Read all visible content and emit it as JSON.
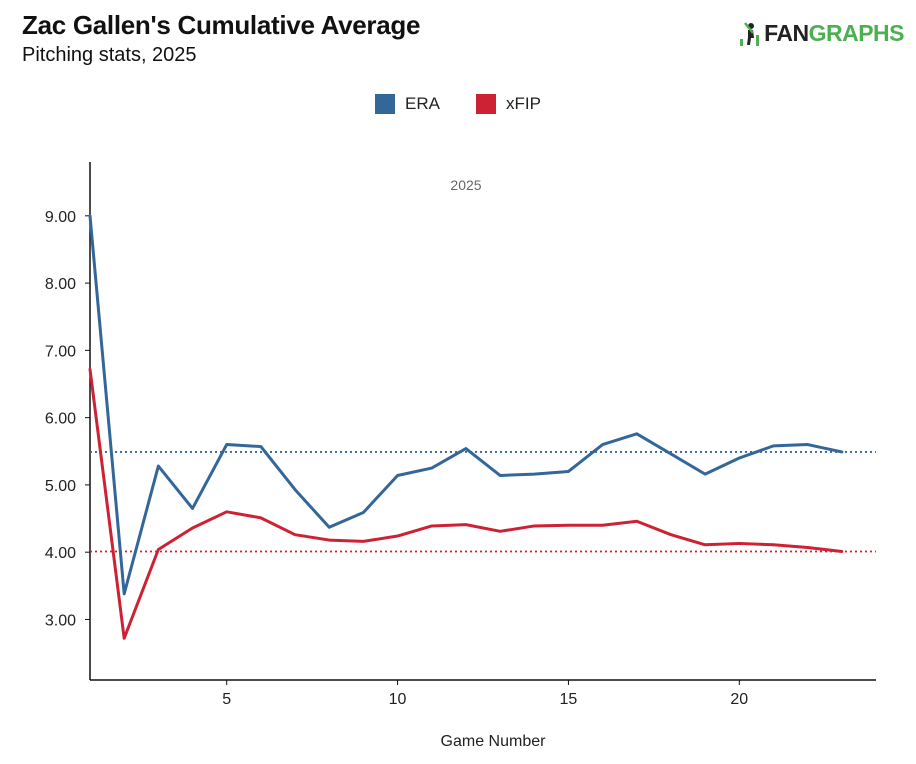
{
  "header": {
    "title": "Zac Gallen's Cumulative Average",
    "subtitle": "Pitching stats, 2025"
  },
  "logo": {
    "text_fan": "FAN",
    "text_graphs": "GRAPHS",
    "icon": "batter-icon"
  },
  "chart_data": {
    "type": "line",
    "title": "Zac Gallen's Cumulative Average",
    "subtitle": "Pitching stats, 2025",
    "panel_label": "2025",
    "xlabel": "Game Number",
    "ylabel": "",
    "xlim": [
      1,
      24
    ],
    "ylim": [
      2.1,
      9.8
    ],
    "x_ticks": [
      5,
      10,
      15,
      20
    ],
    "y_ticks": [
      3,
      4,
      5,
      6,
      7,
      8,
      9
    ],
    "y_tick_labels": [
      "3.00",
      "4.00",
      "5.00",
      "6.00",
      "7.00",
      "8.00",
      "9.00"
    ],
    "legend_position": "top-center",
    "grid": false,
    "x": [
      1,
      2,
      3,
      4,
      5,
      6,
      7,
      8,
      9,
      10,
      11,
      12,
      13,
      14,
      15,
      16,
      17,
      18,
      19,
      20,
      21,
      22,
      23
    ],
    "series": [
      {
        "name": "ERA",
        "color": "#336699",
        "values": [
          9.0,
          3.38,
          5.28,
          4.65,
          5.6,
          5.57,
          4.93,
          4.37,
          4.59,
          5.14,
          5.25,
          5.54,
          5.14,
          5.16,
          5.2,
          5.6,
          5.76,
          5.46,
          5.16,
          5.4,
          5.58,
          5.6,
          5.49
        ],
        "season_average": 5.49
      },
      {
        "name": "xFIP",
        "color": "#cc2233",
        "values": [
          6.72,
          2.72,
          4.04,
          4.36,
          4.6,
          4.51,
          4.26,
          4.18,
          4.16,
          4.24,
          4.39,
          4.41,
          4.31,
          4.39,
          4.4,
          4.4,
          4.46,
          4.26,
          4.11,
          4.13,
          4.11,
          4.07,
          4.01
        ],
        "season_average": 4.01
      }
    ]
  }
}
